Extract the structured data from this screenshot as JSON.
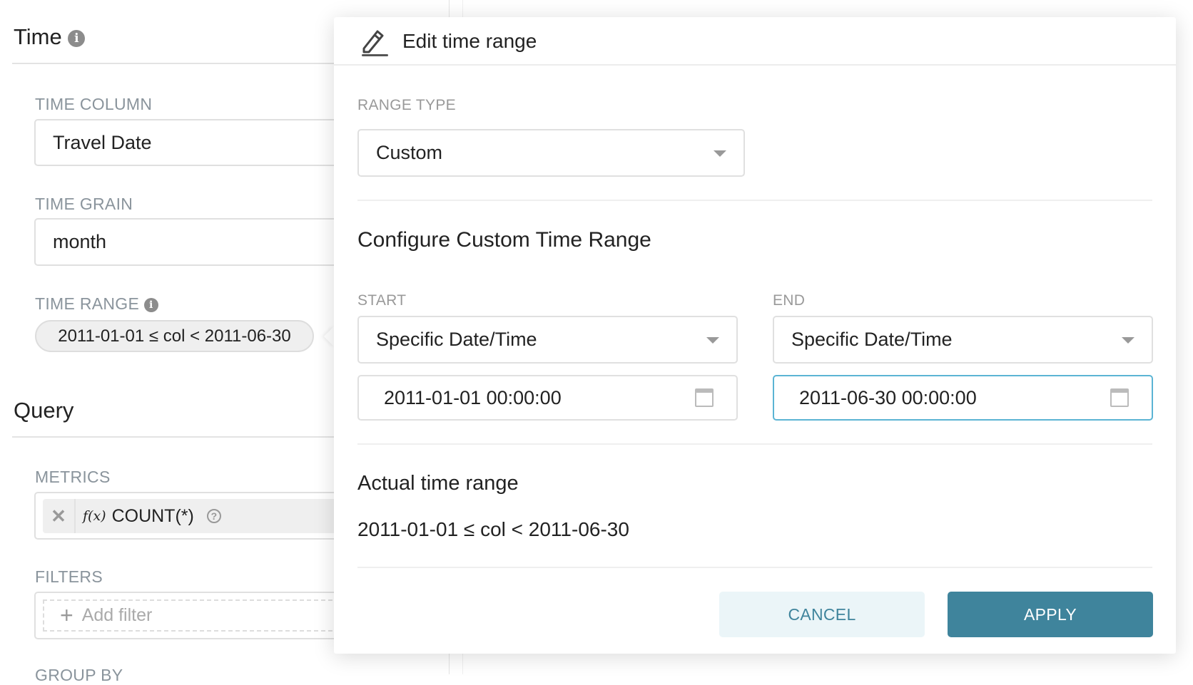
{
  "left_panel": {
    "time_section": {
      "title": "Time",
      "icon": "info-icon"
    },
    "time_column": {
      "label": "TIME COLUMN",
      "value": "Travel Date"
    },
    "time_grain": {
      "label": "TIME GRAIN",
      "value": "month"
    },
    "time_range": {
      "label": "TIME RANGE",
      "value": "2011-01-01 ≤ col < 2011-06-30"
    },
    "query_section": {
      "title": "Query"
    },
    "metrics": {
      "label": "METRICS",
      "items": [
        {
          "fx": "f(x)",
          "name": "COUNT(*)"
        }
      ]
    },
    "filters": {
      "label": "FILTERS",
      "placeholder": "Add filter"
    },
    "group_by": {
      "label": "GROUP BY"
    }
  },
  "modal": {
    "title": "Edit time range",
    "icon": "pencil-icon",
    "range_type": {
      "label": "RANGE TYPE",
      "value": "Custom"
    },
    "custom_title": "Configure Custom Time Range",
    "start": {
      "label": "START",
      "mode": "Specific Date/Time",
      "datetime": "2011-01-01 00:00:00"
    },
    "end": {
      "label": "END",
      "mode": "Specific Date/Time",
      "datetime": "2011-06-30 00:00:00"
    },
    "actual": {
      "title": "Actual time range",
      "value": "2011-01-01 ≤ col < 2011-06-30"
    },
    "cancel_label": "CANCEL",
    "apply_label": "APPLY"
  },
  "colors": {
    "primary": "#3f849c",
    "cancel_bg": "#ebf5f8",
    "focus_border": "#5bb4d4"
  }
}
